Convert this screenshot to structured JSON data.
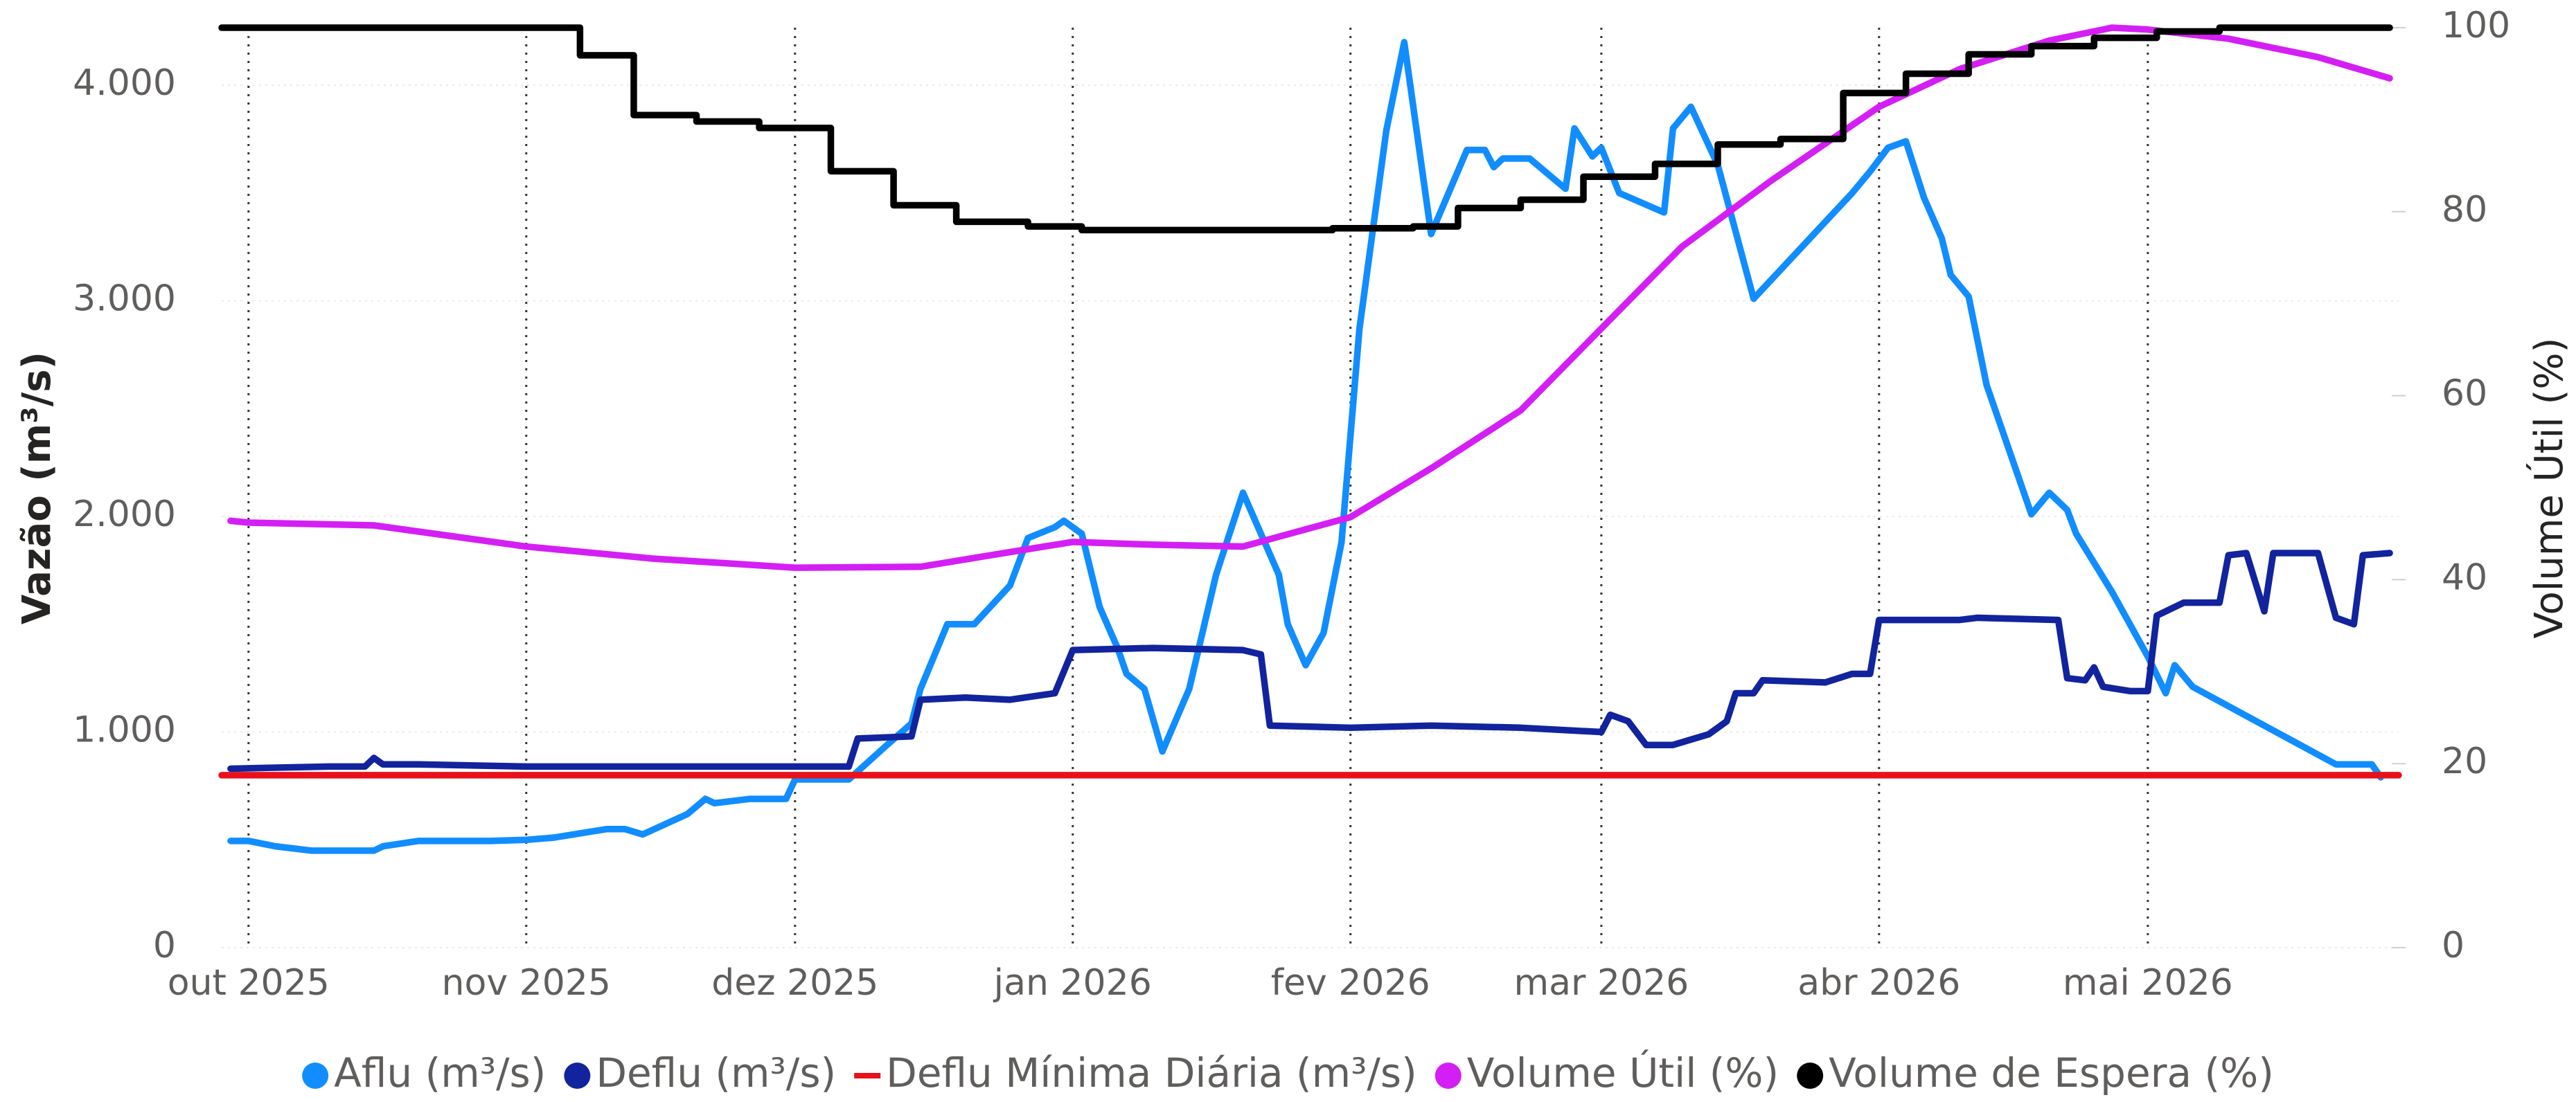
{
  "chart_data": {
    "type": "line",
    "y_label": "Vazão (m³/s)",
    "y2_label": "Volume Útil (%)",
    "xlim": [
      "2025-09-28",
      "2026-05-29"
    ],
    "xticks": [
      {
        "value": "2025-10-01",
        "label": "out 2025"
      },
      {
        "value": "2025-11-01",
        "label": "nov 2025"
      },
      {
        "value": "2025-12-01",
        "label": "dez 2025"
      },
      {
        "value": "2026-01-01",
        "label": "jan 2026"
      },
      {
        "value": "2026-02-01",
        "label": "fev 2026"
      },
      {
        "value": "2026-03-01",
        "label": "mar 2026"
      },
      {
        "value": "2026-04-01",
        "label": "abr 2026"
      },
      {
        "value": "2026-05-01",
        "label": "mai 2026"
      }
    ],
    "ylim": [
      0,
      4267
    ],
    "yticks": [
      0,
      {
        "value": 1000,
        "label": "1.000"
      },
      {
        "value": 2000,
        "label": "2.000"
      },
      {
        "value": 3000,
        "label": "3.000"
      },
      {
        "value": 4000,
        "label": "4.000"
      }
    ],
    "y2lim": [
      0,
      100
    ],
    "y2ticks": [
      0,
      20,
      40,
      60,
      80,
      100
    ],
    "grid": true,
    "legend": "bottom",
    "series": [
      {
        "name": "Aflu (m³/s)",
        "color": "#118dff",
        "marker": "circle",
        "x": [
          "2025-09-29",
          "2025-10-01",
          "2025-10-04",
          "2025-10-08",
          "2025-10-15",
          "2025-10-16",
          "2025-10-20",
          "2025-10-26",
          "2025-10-28",
          "2025-11-01",
          "2025-11-04",
          "2025-11-10",
          "2025-11-12",
          "2025-11-14",
          "2025-11-19",
          "2025-11-21",
          "2025-11-22",
          "2025-11-26",
          "2025-11-30",
          "2025-12-01",
          "2025-12-07",
          "2025-12-11",
          "2025-12-14",
          "2025-12-15",
          "2025-12-18",
          "2025-12-21",
          "2025-12-25",
          "2025-12-27",
          "2025-12-30",
          "2025-12-31",
          "2026-01-02",
          "2026-01-04",
          "2026-01-06",
          "2026-01-07",
          "2026-01-09",
          "2026-01-11",
          "2026-01-14",
          "2026-01-17",
          "2026-01-20",
          "2026-01-24",
          "2026-01-25",
          "2026-01-27",
          "2026-01-29",
          "2026-01-31",
          "2026-02-02",
          "2026-02-05",
          "2026-02-07",
          "2026-02-10",
          "2026-02-14",
          "2026-02-16",
          "2026-02-17",
          "2026-02-18",
          "2026-02-21",
          "2026-02-25",
          "2026-02-26",
          "2026-02-28",
          "2026-03-01",
          "2026-03-03",
          "2026-03-08",
          "2026-03-09",
          "2026-03-11",
          "2026-03-14",
          "2026-03-18",
          "2026-03-29",
          "2026-03-31",
          "2026-04-02",
          "2026-04-04",
          "2026-04-06",
          "2026-04-08",
          "2026-04-09",
          "2026-04-11",
          "2026-04-13",
          "2026-04-18",
          "2026-04-20",
          "2026-04-22",
          "2026-04-23",
          "2026-04-27",
          "2026-05-01",
          "2026-05-03",
          "2026-05-04",
          "2026-05-06",
          "2026-05-10",
          "2026-05-22",
          "2026-05-26",
          "2026-05-27"
        ],
        "values": [
          495,
          495,
          470,
          450,
          450,
          470,
          495,
          495,
          495,
          500,
          510,
          550,
          550,
          525,
          620,
          690,
          670,
          690,
          690,
          780,
          780,
          930,
          1040,
          1200,
          1500,
          1500,
          1680,
          1900,
          1950,
          1980,
          1920,
          1580,
          1390,
          1270,
          1200,
          910,
          1200,
          1730,
          2110,
          1730,
          1500,
          1310,
          1460,
          1880,
          2870,
          3790,
          4200,
          3310,
          3700,
          3700,
          3620,
          3660,
          3660,
          3520,
          3800,
          3670,
          3710,
          3500,
          3410,
          3800,
          3900,
          3630,
          3010,
          3500,
          3600,
          3710,
          3740,
          3480,
          3290,
          3120,
          3020,
          2610,
          2010,
          2110,
          2030,
          1920,
          1650,
          1350,
          1180,
          1310,
          1210,
          1120,
          850,
          850,
          790
        ]
      },
      {
        "name": "Deflu (m³/s)",
        "color": "#12239e",
        "marker": "circle",
        "x": [
          "2025-09-29",
          "2025-10-10",
          "2025-10-14",
          "2025-10-15",
          "2025-10-16",
          "2025-10-20",
          "2025-11-01",
          "2025-11-15",
          "2025-12-01",
          "2025-12-07",
          "2025-12-08",
          "2025-12-14",
          "2025-12-15",
          "2025-12-20",
          "2025-12-25",
          "2025-12-30",
          "2026-01-01",
          "2026-01-10",
          "2026-01-20",
          "2026-01-22",
          "2026-01-23",
          "2026-02-01",
          "2026-02-10",
          "2026-02-20",
          "2026-03-01",
          "2026-03-02",
          "2026-03-04",
          "2026-03-06",
          "2026-03-09",
          "2026-03-13",
          "2026-03-15",
          "2026-03-16",
          "2026-03-18",
          "2026-03-19",
          "2026-03-26",
          "2026-03-29",
          "2026-03-31",
          "2026-04-01",
          "2026-04-10",
          "2026-04-12",
          "2026-04-21",
          "2026-04-22",
          "2026-04-24",
          "2026-04-25",
          "2026-04-26",
          "2026-04-29",
          "2026-05-01",
          "2026-05-02",
          "2026-05-05",
          "2026-05-09",
          "2026-05-10",
          "2026-05-12",
          "2026-05-14",
          "2026-05-15",
          "2026-05-20",
          "2026-05-22",
          "2026-05-24",
          "2026-05-25",
          "2026-05-28"
        ],
        "values": [
          830,
          840,
          840,
          880,
          850,
          850,
          840,
          840,
          840,
          840,
          970,
          980,
          1150,
          1160,
          1150,
          1180,
          1380,
          1390,
          1380,
          1360,
          1030,
          1020,
          1030,
          1020,
          1000,
          1080,
          1050,
          940,
          940,
          990,
          1050,
          1180,
          1180,
          1240,
          1230,
          1270,
          1270,
          1520,
          1520,
          1530,
          1520,
          1250,
          1240,
          1300,
          1210,
          1190,
          1190,
          1540,
          1600,
          1600,
          1820,
          1830,
          1560,
          1830,
          1830,
          1530,
          1500,
          1820,
          1830
        ]
      },
      {
        "name": "Deflu Mínima Diária (m³/s)",
        "color": "#e8111b",
        "marker": "dash",
        "x": [
          "2025-09-28",
          "2026-05-29"
        ],
        "values": [
          800,
          800
        ]
      },
      {
        "name": "Volume Útil (%)",
        "color": "#d41ff4",
        "marker": "circle",
        "axis": "y2",
        "x": [
          "2025-09-29",
          "2025-10-01",
          "2025-10-15",
          "2025-11-01",
          "2025-11-15",
          "2025-12-01",
          "2025-12-15",
          "2025-12-25",
          "2026-01-01",
          "2026-01-10",
          "2026-01-20",
          "2026-02-01",
          "2026-02-10",
          "2026-02-20",
          "2026-03-01",
          "2026-03-10",
          "2026-03-20",
          "2026-04-01",
          "2026-04-10",
          "2026-04-20",
          "2026-04-27",
          "2026-05-01",
          "2026-05-10",
          "2026-05-20",
          "2026-05-28"
        ],
        "values": [
          46.4,
          46.2,
          45.9,
          43.6,
          42.3,
          41.3,
          41.4,
          43.0,
          44.1,
          43.8,
          43.6,
          46.8,
          52.1,
          58.4,
          67.3,
          76.2,
          83.4,
          91.4,
          95.5,
          98.6,
          100,
          99.8,
          98.8,
          96.8,
          94.5
        ]
      },
      {
        "name": "Volume de Espera (%)",
        "color": "#000000",
        "marker": "circle",
        "axis": "y2",
        "step": true,
        "x": [
          "2025-09-28",
          "2025-11-07",
          "2025-11-13",
          "2025-11-20",
          "2025-11-27",
          "2025-12-05",
          "2025-12-12",
          "2025-12-19",
          "2025-12-27",
          "2026-01-02",
          "2026-01-30",
          "2026-02-08",
          "2026-02-13",
          "2026-02-20",
          "2026-02-27",
          "2026-03-07",
          "2026-03-14",
          "2026-03-21",
          "2026-03-28",
          "2026-04-04",
          "2026-04-11",
          "2026-04-18",
          "2026-04-25",
          "2026-05-02",
          "2026-05-09",
          "2026-05-28"
        ],
        "values": [
          100,
          97.0,
          90.5,
          89.8,
          89.1,
          84.4,
          80.7,
          78.9,
          78.4,
          78.0,
          78.2,
          78.4,
          80.4,
          81.3,
          83.8,
          85.2,
          87.3,
          87.9,
          92.9,
          95.0,
          97.1,
          98.0,
          98.9,
          99.6,
          100,
          100
        ]
      }
    ]
  }
}
